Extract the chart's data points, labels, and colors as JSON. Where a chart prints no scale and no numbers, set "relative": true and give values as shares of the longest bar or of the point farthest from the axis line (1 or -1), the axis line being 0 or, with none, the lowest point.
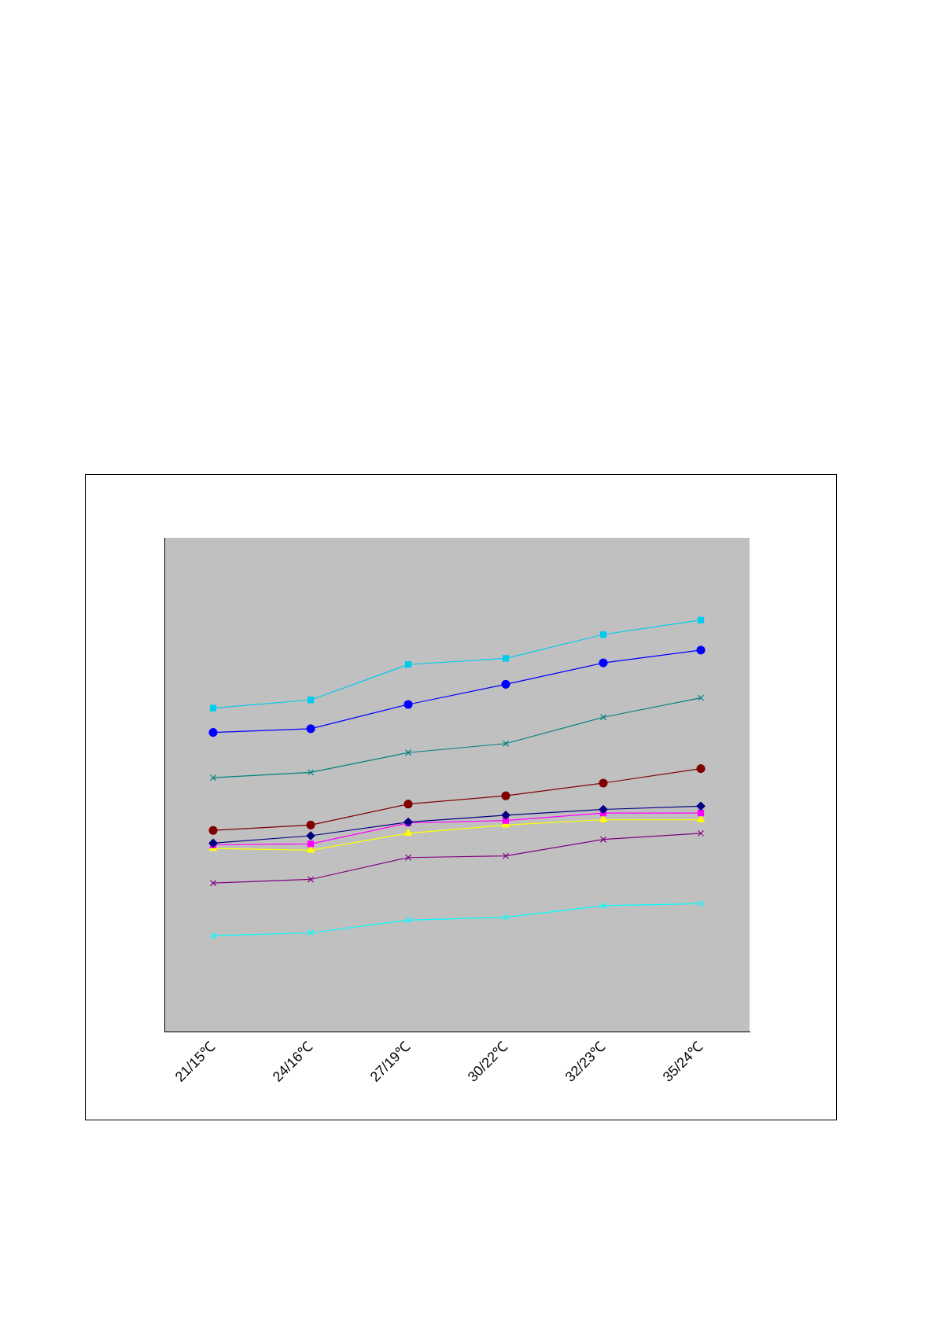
{
  "chart_data": {
    "type": "line",
    "relative": true,
    "categories": [
      "21/15℃",
      "24/16℃",
      "27/19℃",
      "30/22℃",
      "32/23℃",
      "35/24℃"
    ],
    "series": [
      {
        "color": "#000080",
        "marker": "diamond",
        "values": [
          0.458,
          0.476,
          0.509,
          0.526,
          0.54,
          0.548
        ]
      },
      {
        "color": "#ff00ff",
        "marker": "square",
        "values": [
          0.454,
          0.456,
          0.507,
          0.513,
          0.531,
          0.531
        ]
      },
      {
        "color": "#ffff00",
        "marker": "triangle",
        "values": [
          0.445,
          0.441,
          0.482,
          0.502,
          0.515,
          0.515
        ]
      },
      {
        "color": "#00ffff",
        "marker": "cross",
        "values": [
          0.233,
          0.24,
          0.271,
          0.278,
          0.306,
          0.311
        ]
      },
      {
        "color": "#800080",
        "marker": "cross",
        "values": [
          0.361,
          0.37,
          0.423,
          0.427,
          0.467,
          0.482
        ]
      },
      {
        "color": "#800000",
        "marker": "circle",
        "values": [
          0.489,
          0.502,
          0.553,
          0.573,
          0.604,
          0.639
        ]
      },
      {
        "color": "#008080",
        "marker": "cross",
        "values": [
          0.617,
          0.63,
          0.678,
          0.7,
          0.764,
          0.811
        ]
      },
      {
        "color": "#0000ff",
        "marker": "circle",
        "values": [
          0.727,
          0.736,
          0.795,
          0.844,
          0.896,
          0.927
        ]
      },
      {
        "color": "#00ccee",
        "marker": "square",
        "values": [
          0.786,
          0.806,
          0.892,
          0.907,
          0.965,
          1
        ]
      }
    ]
  }
}
